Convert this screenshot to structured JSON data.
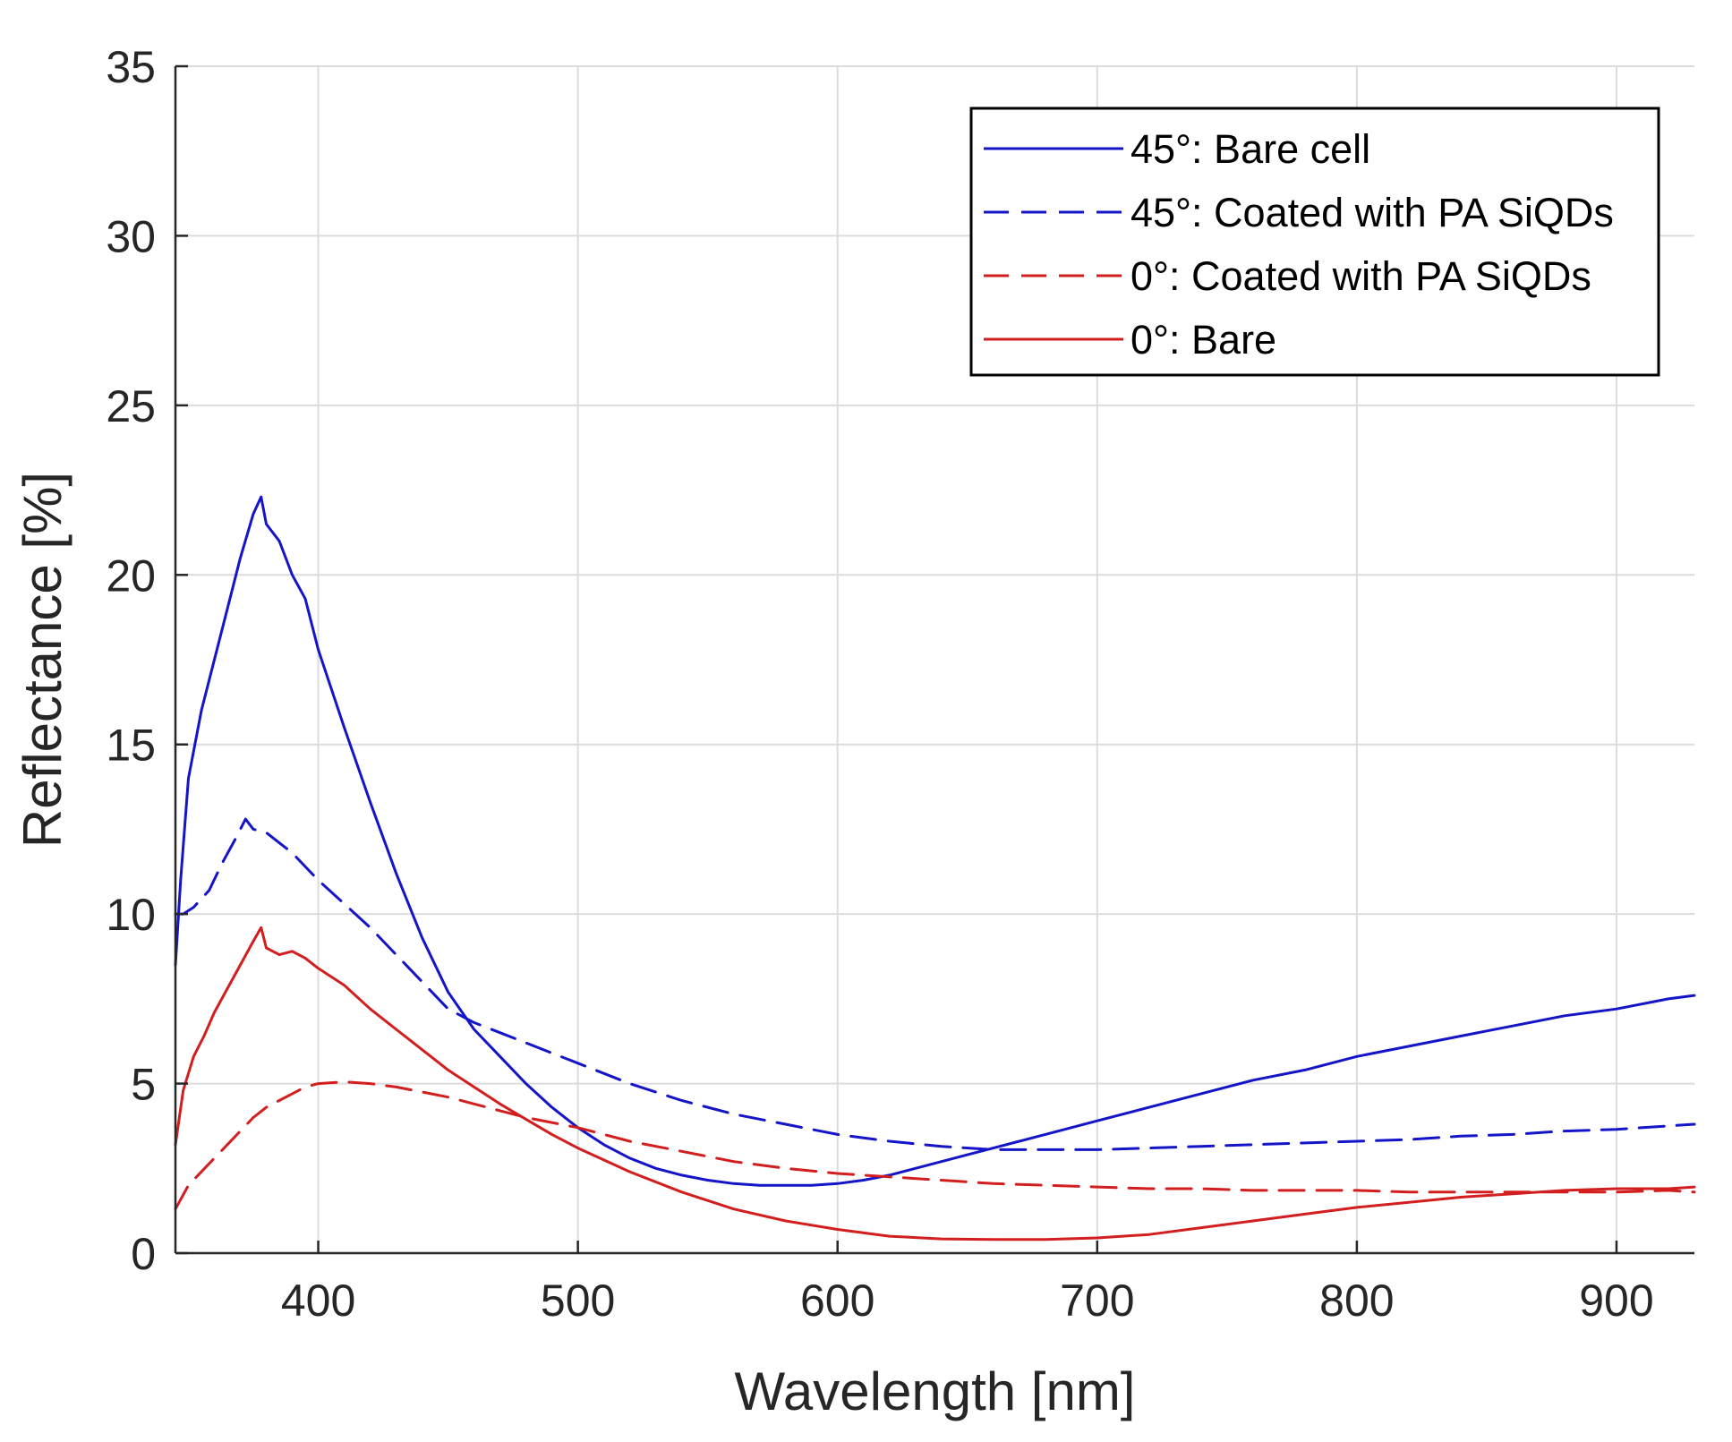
{
  "chart_data": {
    "type": "line",
    "title": "",
    "xlabel": "Wavelength [nm]",
    "ylabel": "Reflectance [%]",
    "xlim": [
      345,
      930
    ],
    "ylim": [
      0,
      35
    ],
    "xticks": [
      400,
      500,
      600,
      700,
      800,
      900
    ],
    "yticks": [
      0,
      5,
      10,
      15,
      20,
      25,
      30,
      35
    ],
    "xtick_labels": [
      "400",
      "500",
      "600",
      "700",
      "800",
      "900"
    ],
    "ytick_labels": [
      "0",
      "5",
      "10",
      "15",
      "20",
      "25",
      "30",
      "35"
    ],
    "grid": true,
    "legend_position": "top-right",
    "series": [
      {
        "name": "45°: Bare cell",
        "color": "#1414c8",
        "dash": "solid",
        "x": [
          345,
          347,
          350,
          355,
          360,
          365,
          370,
          375,
          378,
          380,
          385,
          390,
          395,
          400,
          410,
          420,
          430,
          440,
          450,
          460,
          470,
          480,
          490,
          500,
          510,
          520,
          530,
          540,
          550,
          560,
          570,
          580,
          590,
          600,
          610,
          620,
          630,
          640,
          650,
          660,
          670,
          680,
          690,
          700,
          720,
          740,
          760,
          780,
          800,
          820,
          840,
          860,
          880,
          900,
          920,
          930
        ],
        "y": [
          8.5,
          11,
          14,
          16,
          17.5,
          19,
          20.5,
          21.8,
          22.3,
          21.5,
          21,
          20,
          19.3,
          17.8,
          15.5,
          13.3,
          11.2,
          9.3,
          7.7,
          6.6,
          5.8,
          5.0,
          4.3,
          3.7,
          3.2,
          2.8,
          2.5,
          2.3,
          2.15,
          2.05,
          2.0,
          2.0,
          2.0,
          2.05,
          2.15,
          2.3,
          2.5,
          2.7,
          2.9,
          3.1,
          3.3,
          3.5,
          3.7,
          3.9,
          4.3,
          4.7,
          5.1,
          5.4,
          5.8,
          6.1,
          6.4,
          6.7,
          7.0,
          7.2,
          7.5,
          7.6
        ]
      },
      {
        "name": "45°: Coated with PA SiQDs",
        "color": "#1414c8",
        "dash": "dashed",
        "x": [
          345,
          348,
          352,
          358,
          363,
          368,
          372,
          375,
          380,
          385,
          390,
          395,
          400,
          410,
          420,
          430,
          440,
          450,
          460,
          470,
          480,
          490,
          500,
          520,
          540,
          560,
          580,
          600,
          620,
          640,
          660,
          680,
          700,
          720,
          740,
          760,
          780,
          800,
          820,
          840,
          860,
          880,
          900,
          920,
          930
        ],
        "y": [
          10.0,
          10.0,
          10.2,
          10.7,
          11.5,
          12.2,
          12.8,
          12.5,
          12.4,
          12.1,
          11.8,
          11.4,
          11.0,
          10.3,
          9.6,
          8.8,
          8.0,
          7.2,
          6.8,
          6.5,
          6.2,
          5.9,
          5.6,
          5.0,
          4.5,
          4.1,
          3.8,
          3.5,
          3.3,
          3.15,
          3.05,
          3.05,
          3.05,
          3.1,
          3.15,
          3.2,
          3.25,
          3.3,
          3.35,
          3.45,
          3.5,
          3.6,
          3.65,
          3.75,
          3.8
        ]
      },
      {
        "name": "0°: Coated with PA SiQDs",
        "color": "#d21e1e",
        "dash": "dashed",
        "x": [
          345,
          350,
          355,
          360,
          365,
          370,
          375,
          380,
          385,
          390,
          395,
          400,
          410,
          420,
          430,
          440,
          450,
          460,
          470,
          480,
          490,
          500,
          520,
          540,
          560,
          580,
          600,
          620,
          640,
          660,
          680,
          700,
          720,
          740,
          760,
          780,
          800,
          820,
          840,
          860,
          880,
          900,
          920,
          930
        ],
        "y": [
          1.3,
          2.0,
          2.4,
          2.8,
          3.2,
          3.6,
          4.0,
          4.3,
          4.5,
          4.7,
          4.9,
          5.0,
          5.05,
          5.0,
          4.9,
          4.75,
          4.6,
          4.4,
          4.2,
          4.0,
          3.85,
          3.7,
          3.3,
          3.0,
          2.7,
          2.5,
          2.35,
          2.25,
          2.15,
          2.05,
          2.0,
          1.95,
          1.9,
          1.9,
          1.85,
          1.85,
          1.85,
          1.8,
          1.8,
          1.8,
          1.8,
          1.8,
          1.85,
          1.8
        ]
      },
      {
        "name": "0°: Bare",
        "color": "#d21e1e",
        "dash": "solid",
        "x": [
          345,
          348,
          352,
          356,
          360,
          365,
          370,
          375,
          378,
          380,
          385,
          390,
          395,
          400,
          410,
          420,
          430,
          440,
          450,
          460,
          470,
          480,
          490,
          500,
          520,
          540,
          560,
          580,
          600,
          620,
          640,
          660,
          680,
          700,
          720,
          740,
          760,
          780,
          800,
          820,
          840,
          860,
          880,
          900,
          920,
          930
        ],
        "y": [
          3.2,
          4.8,
          5.8,
          6.4,
          7.1,
          7.8,
          8.5,
          9.2,
          9.6,
          9.0,
          8.8,
          8.9,
          8.7,
          8.4,
          7.9,
          7.2,
          6.6,
          6.0,
          5.4,
          4.9,
          4.4,
          3.95,
          3.5,
          3.1,
          2.4,
          1.8,
          1.3,
          0.95,
          0.7,
          0.5,
          0.42,
          0.4,
          0.4,
          0.45,
          0.55,
          0.75,
          0.95,
          1.15,
          1.35,
          1.5,
          1.65,
          1.75,
          1.85,
          1.9,
          1.9,
          1.95
        ]
      }
    ]
  }
}
